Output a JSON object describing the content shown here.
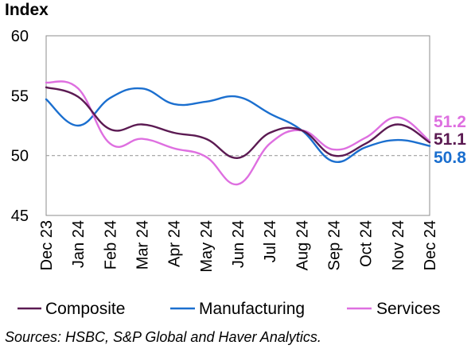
{
  "chart_data": {
    "type": "line",
    "ylabel": "Index",
    "ylim": [
      45,
      60
    ],
    "yticks": [
      "45",
      "50",
      "55",
      "60"
    ],
    "reference_line": 50,
    "categories": [
      "Dec 23",
      "Jan 24",
      "Feb 24",
      "Mar 24",
      "Apr 24",
      "May 24",
      "Jun 24",
      "Jul 24",
      "Aug 24",
      "Sep 24",
      "Oct 24",
      "Nov 24",
      "Dec 24"
    ],
    "series": [
      {
        "name": "Composite",
        "color": "#5b1a52",
        "values": [
          55.7,
          54.9,
          52.2,
          52.6,
          51.9,
          51.4,
          49.8,
          51.9,
          52.1,
          50.0,
          51.0,
          52.6,
          51.1
        ],
        "end_label": "51.1"
      },
      {
        "name": "Manufacturing",
        "color": "#1b6fcf",
        "values": [
          54.7,
          52.5,
          54.8,
          55.6,
          54.3,
          54.5,
          54.9,
          53.5,
          52.1,
          49.5,
          50.7,
          51.3,
          50.8
        ],
        "end_label": "50.8"
      },
      {
        "name": "Services",
        "color": "#de6fe0",
        "values": [
          56.1,
          55.6,
          51.0,
          51.4,
          50.6,
          49.9,
          47.6,
          51.0,
          52.1,
          50.5,
          51.5,
          53.2,
          51.2
        ],
        "end_label": "51.2"
      }
    ]
  },
  "source": "Sources: HSBC, S&P Global and Haver Analytics."
}
